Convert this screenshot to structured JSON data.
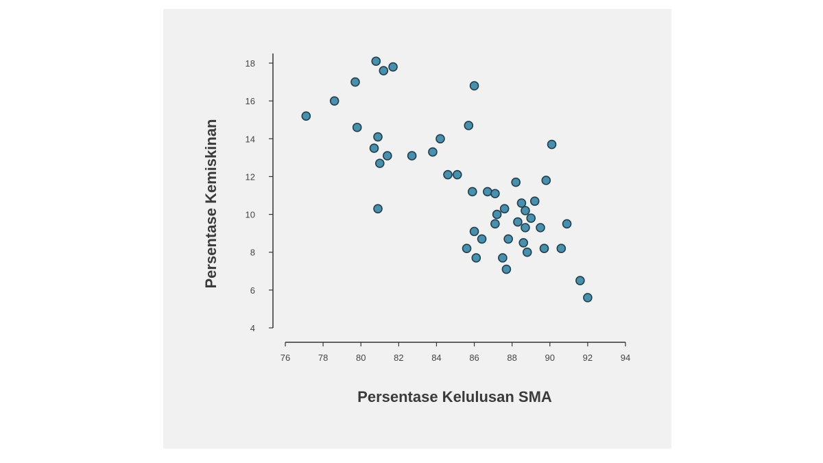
{
  "colors": {
    "point_fill": "#4a8fab",
    "point_stroke": "#1f3f4f",
    "axis": "#333333",
    "background": "#f2f1f1"
  },
  "chart_data": {
    "type": "scatter",
    "title": "",
    "xlabel": "Persentase Kelulusan SMA",
    "ylabel": "Persentase Kemiskinan",
    "xlim": [
      76,
      94
    ],
    "ylim": [
      4,
      18
    ],
    "xticks": [
      76,
      78,
      80,
      82,
      84,
      86,
      88,
      90,
      92,
      94
    ],
    "yticks": [
      4,
      6,
      8,
      10,
      12,
      14,
      16,
      18
    ],
    "grid": false,
    "points": [
      {
        "x": 77.1,
        "y": 15.2
      },
      {
        "x": 78.6,
        "y": 16.0
      },
      {
        "x": 79.7,
        "y": 17.0
      },
      {
        "x": 79.8,
        "y": 14.6
      },
      {
        "x": 80.8,
        "y": 18.1
      },
      {
        "x": 81.2,
        "y": 17.6
      },
      {
        "x": 81.7,
        "y": 17.8
      },
      {
        "x": 80.9,
        "y": 14.1
      },
      {
        "x": 80.7,
        "y": 13.5
      },
      {
        "x": 81.4,
        "y": 13.1
      },
      {
        "x": 81.0,
        "y": 12.7
      },
      {
        "x": 80.9,
        "y": 10.3
      },
      {
        "x": 82.7,
        "y": 13.1
      },
      {
        "x": 83.8,
        "y": 13.3
      },
      {
        "x": 84.2,
        "y": 14.0
      },
      {
        "x": 84.6,
        "y": 12.1
      },
      {
        "x": 85.1,
        "y": 12.1
      },
      {
        "x": 85.7,
        "y": 14.7
      },
      {
        "x": 86.0,
        "y": 16.8
      },
      {
        "x": 85.9,
        "y": 11.2
      },
      {
        "x": 86.7,
        "y": 11.2
      },
      {
        "x": 87.1,
        "y": 11.1
      },
      {
        "x": 88.2,
        "y": 11.7
      },
      {
        "x": 89.8,
        "y": 11.8
      },
      {
        "x": 90.1,
        "y": 13.7
      },
      {
        "x": 87.6,
        "y": 10.3
      },
      {
        "x": 88.5,
        "y": 10.6
      },
      {
        "x": 89.2,
        "y": 10.7
      },
      {
        "x": 88.7,
        "y": 10.2
      },
      {
        "x": 87.2,
        "y": 10.0
      },
      {
        "x": 89.0,
        "y": 9.8
      },
      {
        "x": 88.3,
        "y": 9.6
      },
      {
        "x": 87.1,
        "y": 9.5
      },
      {
        "x": 88.7,
        "y": 9.3
      },
      {
        "x": 89.5,
        "y": 9.3
      },
      {
        "x": 90.9,
        "y": 9.5
      },
      {
        "x": 86.0,
        "y": 9.1
      },
      {
        "x": 86.4,
        "y": 8.7
      },
      {
        "x": 87.8,
        "y": 8.7
      },
      {
        "x": 88.6,
        "y": 8.5
      },
      {
        "x": 85.6,
        "y": 8.2
      },
      {
        "x": 89.7,
        "y": 8.2
      },
      {
        "x": 90.6,
        "y": 8.2
      },
      {
        "x": 88.8,
        "y": 8.0
      },
      {
        "x": 86.1,
        "y": 7.7
      },
      {
        "x": 87.5,
        "y": 7.7
      },
      {
        "x": 87.7,
        "y": 7.1
      },
      {
        "x": 91.6,
        "y": 6.5
      },
      {
        "x": 92.0,
        "y": 5.6
      }
    ]
  }
}
